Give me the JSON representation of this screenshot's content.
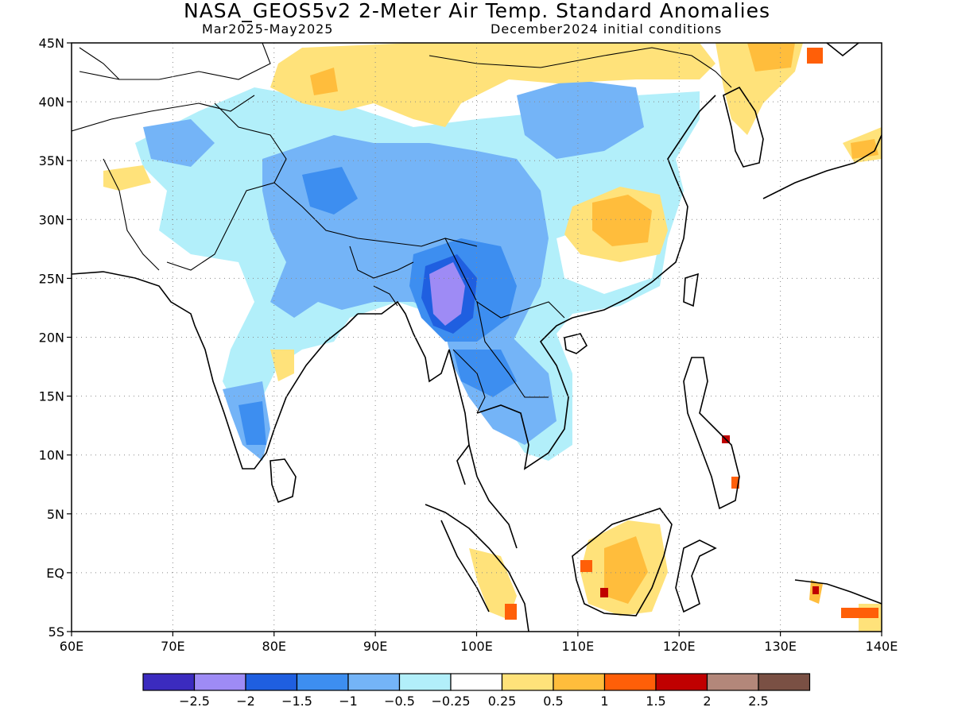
{
  "title": "NASA_GEOS5v2 2-Meter Air Temp. Standard Anomalies",
  "subtitle_left": "Mar2025-May2025",
  "subtitle_right": "December2024 initial conditions",
  "map": {
    "lon_range": [
      60,
      140
    ],
    "lat_range": [
      -5,
      45
    ],
    "lon_ticks": [
      "60E",
      "70E",
      "80E",
      "90E",
      "100E",
      "110E",
      "120E",
      "130E",
      "140E"
    ],
    "lat_ticks": [
      "45N",
      "40N",
      "35N",
      "30N",
      "25N",
      "20N",
      "15N",
      "10N",
      "5N",
      "EQ",
      "5S"
    ],
    "grid": "dotted"
  },
  "colorbar": {
    "colors": [
      "#3b2bbf",
      "#9e8bf5",
      "#1f5fe0",
      "#3d8ef0",
      "#74b4f7",
      "#b2effa",
      "#ffffff",
      "#ffe27a",
      "#ffbd3c",
      "#ff5f08",
      "#c00000",
      "#b3877a",
      "#7a5044"
    ],
    "labels": [
      "-2.5",
      "-2",
      "-1.5",
      "-1",
      "-0.5",
      "-0.25",
      "0.25",
      "0.5",
      "1",
      "1.5",
      "2",
      "2.5"
    ]
  }
}
